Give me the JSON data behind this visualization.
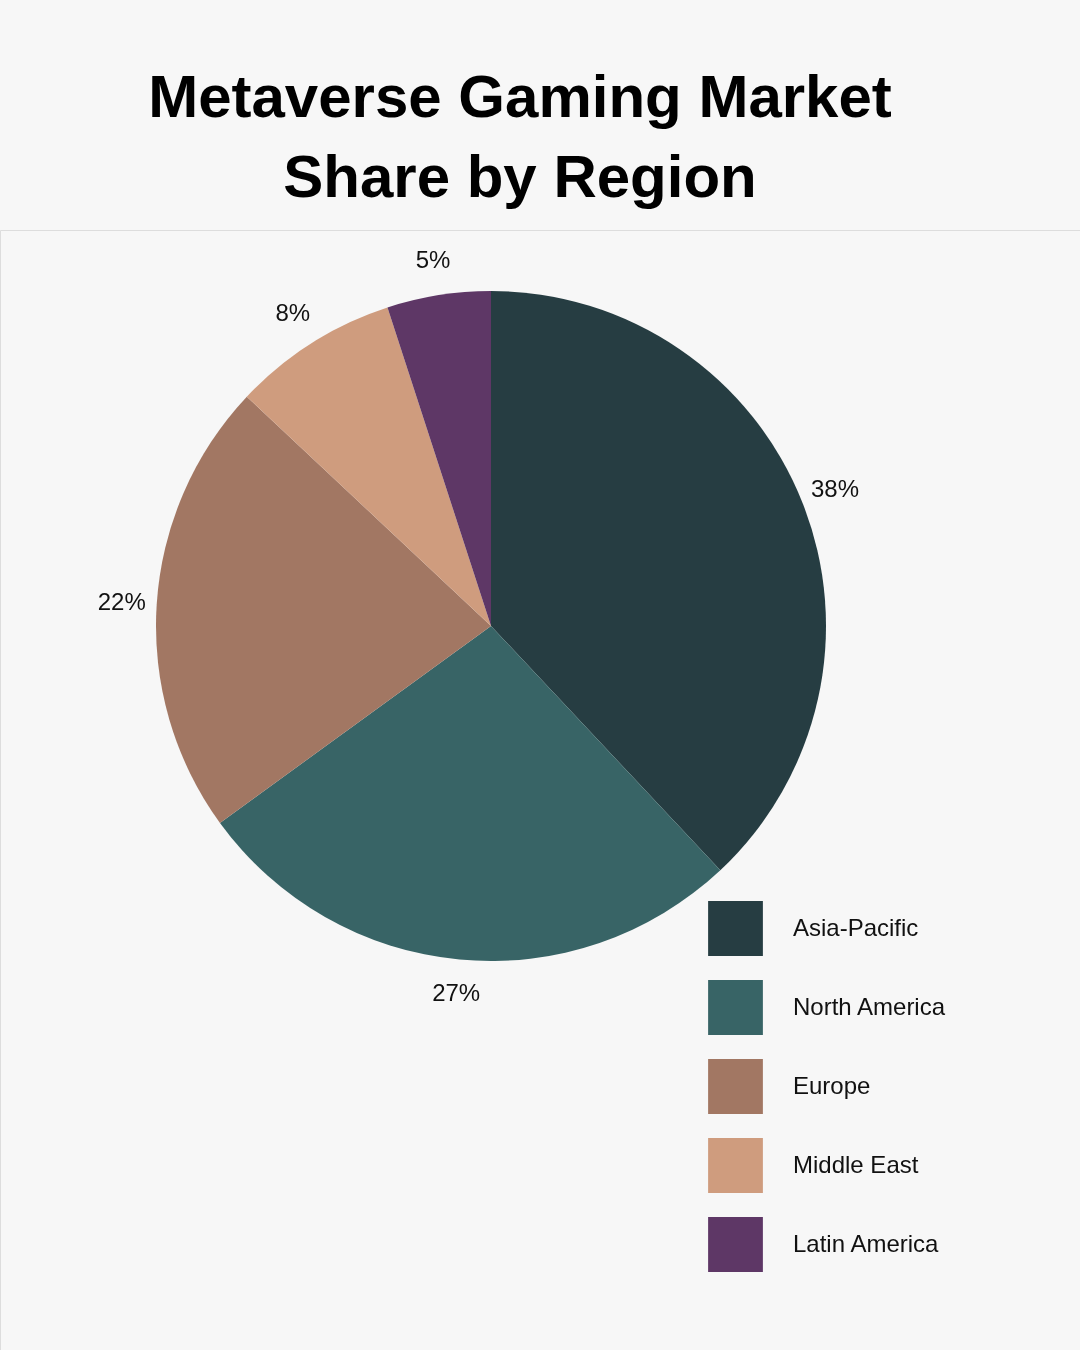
{
  "chart_data": {
    "type": "pie",
    "title": "Metaverse Gaming Market Share by Region",
    "categories": [
      "Asia-Pacific",
      "North America",
      "Europe",
      "Middle East",
      "Latin America"
    ],
    "values": [
      38,
      27,
      22,
      8,
      5
    ],
    "colors": [
      "#263d42",
      "#386466",
      "#a27763",
      "#cf9c7e",
      "#5e3766"
    ],
    "value_labels": [
      "38%",
      "27%",
      "22%",
      "8%",
      "5%"
    ],
    "legend": "bottom right"
  }
}
